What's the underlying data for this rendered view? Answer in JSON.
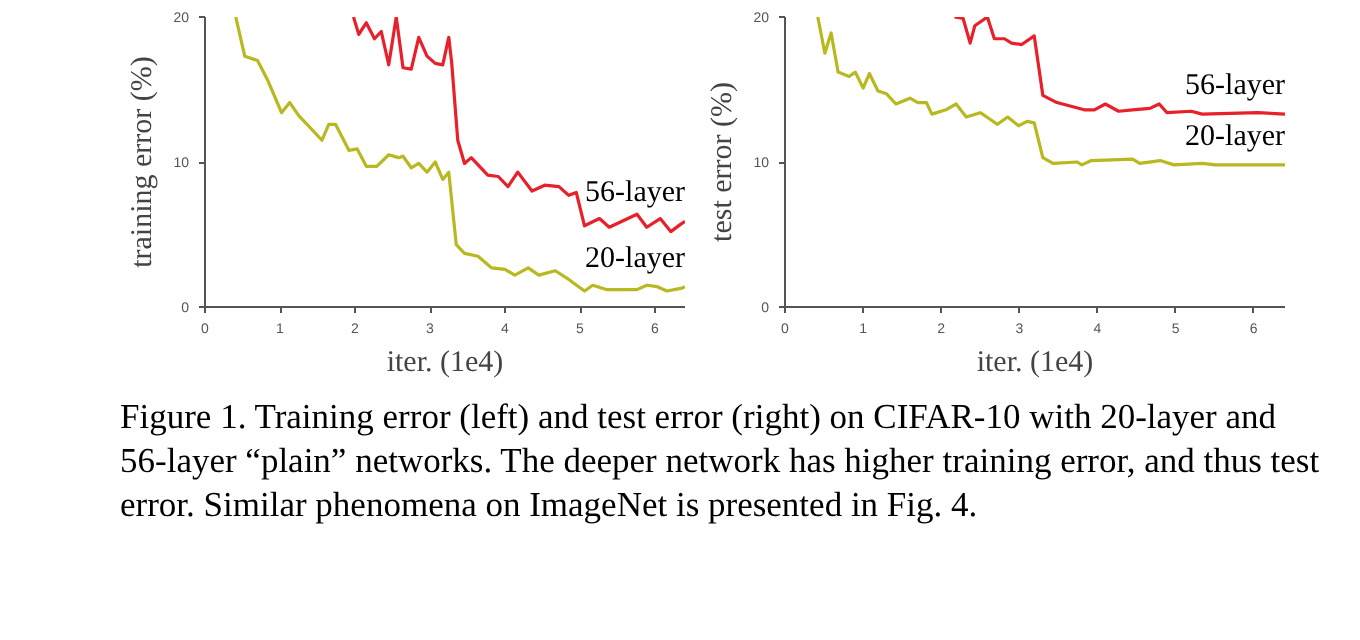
{
  "chart_data": [
    {
      "type": "line",
      "xlabel": "iter. (1e4)",
      "ylabel": "training error (%)",
      "xlim": [
        0,
        6.4
      ],
      "ylim": [
        0,
        20
      ],
      "xticks": [
        0,
        1,
        2,
        3,
        4,
        5,
        6
      ],
      "yticks": [
        0,
        10,
        20
      ],
      "grid": false,
      "legend": false,
      "marker": "none",
      "line_style": "solid",
      "series": [
        {
          "name": "56-layer",
          "color": "#e8202a",
          "x": [
            1.98,
            2.05,
            2.15,
            2.26,
            2.35,
            2.45,
            2.55,
            2.64,
            2.75,
            2.85,
            2.96,
            3.07,
            3.17,
            3.25,
            3.29,
            3.37,
            3.46,
            3.55,
            3.77,
            3.91,
            4.04,
            4.17,
            4.36,
            4.53,
            4.72,
            4.85,
            4.95,
            5.06,
            5.26,
            5.39,
            5.76,
            5.89,
            6.07,
            6.21,
            6.34,
            6.4
          ],
          "values": [
            20,
            18.8,
            19.6,
            18.5,
            19.0,
            16.7,
            20,
            16.5,
            16.4,
            18.6,
            17.3,
            16.8,
            16.7,
            18.6,
            16.8,
            11.5,
            9.9,
            10.3,
            9.1,
            9.0,
            8.3,
            9.3,
            8.0,
            8.4,
            8.3,
            7.7,
            7.9,
            5.6,
            6.1,
            5.5,
            6.4,
            5.5,
            6.1,
            5.2,
            5.7,
            5.9
          ]
        },
        {
          "name": "20-layer",
          "color": "#b8b820",
          "x": [
            0.41,
            0.53,
            0.7,
            0.84,
            1.02,
            1.13,
            1.25,
            1.56,
            1.65,
            1.74,
            1.92,
            2.03,
            2.15,
            2.29,
            2.45,
            2.58,
            2.64,
            2.75,
            2.85,
            2.96,
            3.07,
            3.17,
            3.25,
            3.35,
            3.46,
            3.64,
            3.82,
            4.0,
            4.13,
            4.31,
            4.45,
            4.67,
            4.85,
            5.06,
            5.17,
            5.35,
            5.76,
            5.89,
            6.03,
            6.16,
            6.36,
            6.4
          ],
          "values": [
            20,
            17.3,
            17.0,
            15.6,
            13.4,
            14.1,
            13.2,
            11.5,
            12.6,
            12.6,
            10.8,
            10.9,
            9.7,
            9.7,
            10.5,
            10.3,
            10.4,
            9.6,
            9.9,
            9.3,
            10.0,
            8.8,
            9.3,
            4.3,
            3.7,
            3.5,
            2.7,
            2.6,
            2.2,
            2.7,
            2.2,
            2.5,
            1.9,
            1.1,
            1.5,
            1.2,
            1.2,
            1.5,
            1.4,
            1.1,
            1.3,
            1.4
          ]
        }
      ],
      "annotations": [
        "Figure 1. Training error (left) and test error (right) on CIFAR-10 with 20-layer and 56-layer “plain” networks. The deeper network has higher training error, and thus test error. Similar phenomena on ImageNet is presented in Fig. 4."
      ]
    },
    {
      "type": "line",
      "xlabel": "iter. (1e4)",
      "ylabel": "test error (%)",
      "xlim": [
        0,
        6.4
      ],
      "ylim": [
        0,
        20
      ],
      "xticks": [
        0,
        1,
        2,
        3,
        4,
        5,
        6
      ],
      "yticks": [
        0,
        10,
        20
      ],
      "grid": false,
      "legend": false,
      "marker": "none",
      "line_style": "solid",
      "series": [
        {
          "name": "56-layer",
          "color": "#e8202a",
          "x": [
            2.17,
            2.28,
            2.37,
            2.43,
            2.59,
            2.68,
            2.81,
            2.9,
            3.03,
            3.19,
            3.3,
            3.48,
            3.83,
            3.96,
            4.1,
            4.27,
            4.45,
            4.67,
            4.79,
            4.89,
            5.2,
            5.34,
            6.05,
            6.4
          ],
          "values": [
            20,
            19.9,
            18.2,
            19.4,
            20,
            18.5,
            18.5,
            18.2,
            18.1,
            18.7,
            14.6,
            14.1,
            13.6,
            13.6,
            14.0,
            13.5,
            13.6,
            13.7,
            14.0,
            13.4,
            13.5,
            13.3,
            13.4,
            13.3
          ]
        },
        {
          "name": "20-layer",
          "color": "#b8b820",
          "x": [
            0.42,
            0.51,
            0.59,
            0.68,
            0.82,
            0.9,
            1.0,
            1.08,
            1.19,
            1.3,
            1.42,
            1.6,
            1.7,
            1.81,
            1.88,
            2.06,
            2.19,
            2.32,
            2.5,
            2.61,
            2.72,
            2.85,
            2.99,
            3.1,
            3.19,
            3.3,
            3.43,
            3.74,
            3.8,
            3.92,
            4.45,
            4.54,
            4.8,
            4.98,
            5.34,
            5.51,
            6.05,
            6.4
          ],
          "values": [
            20,
            17.5,
            18.9,
            16.2,
            15.9,
            16.2,
            15.1,
            16.1,
            14.9,
            14.7,
            14.0,
            14.4,
            14.1,
            14.1,
            13.3,
            13.6,
            14.0,
            13.1,
            13.4,
            13.0,
            12.6,
            13.1,
            12.5,
            12.8,
            12.7,
            10.3,
            9.9,
            10.0,
            9.8,
            10.1,
            10.2,
            9.9,
            10.1,
            9.8,
            9.9,
            9.8,
            9.8,
            9.8
          ]
        }
      ]
    }
  ]
}
